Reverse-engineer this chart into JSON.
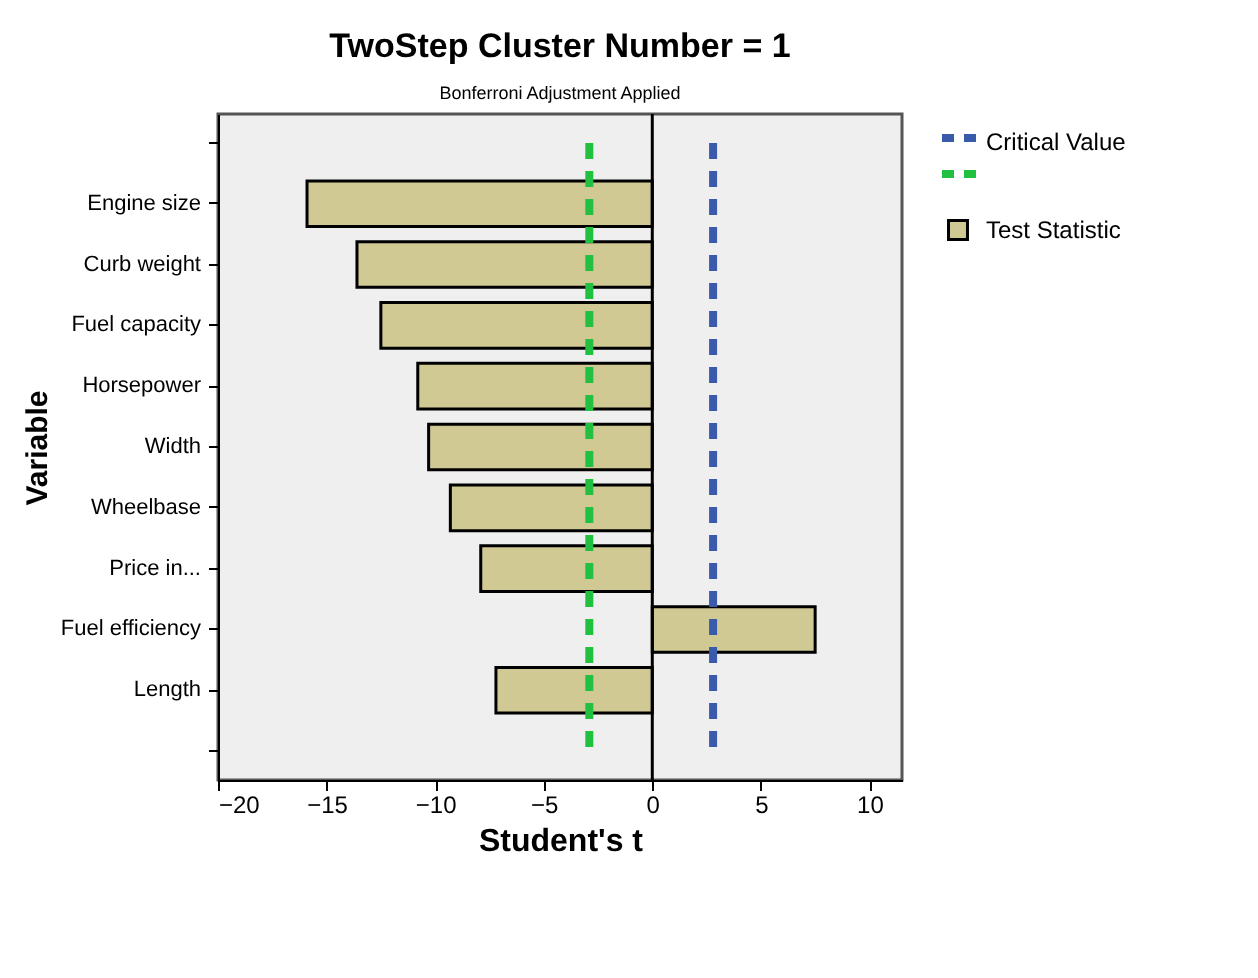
{
  "chart_data": {
    "type": "bar",
    "orientation": "horizontal",
    "title": "TwoStep Cluster Number = 1",
    "subtitle": "Bonferroni Adjustment Applied",
    "xlabel": "Student's t",
    "ylabel": "Variable",
    "categories": [
      null,
      "Engine size",
      "Curb weight",
      "Fuel capacity",
      "Horsepower",
      "Width",
      "Wheelbase",
      "Price in...",
      "Fuel efficiency",
      "Length",
      null
    ],
    "series": [
      {
        "name": "Test Statistic",
        "color": "#d1c994",
        "values": [
          null,
          -15.9,
          -13.6,
          -12.5,
          -10.8,
          -10.3,
          -9.3,
          -7.9,
          7.5,
          -7.2,
          null
        ]
      }
    ],
    "annotations": [
      "Critical Value"
    ],
    "ref_lines": [
      {
        "axis": "x",
        "value": 0,
        "color": "#000000",
        "line_style": "solid"
      },
      {
        "axis": "x",
        "value": 2.8,
        "color": "#3a5aab",
        "line_style": "dashed"
      },
      {
        "axis": "x",
        "value": -2.9,
        "color": "#22c040",
        "line_style": "dashed"
      }
    ],
    "xlim": [
      -20,
      11.5
    ],
    "xticks": [
      -20,
      -15,
      -10,
      -5,
      0,
      5,
      10
    ],
    "grid": false,
    "legend": "top right"
  }
}
